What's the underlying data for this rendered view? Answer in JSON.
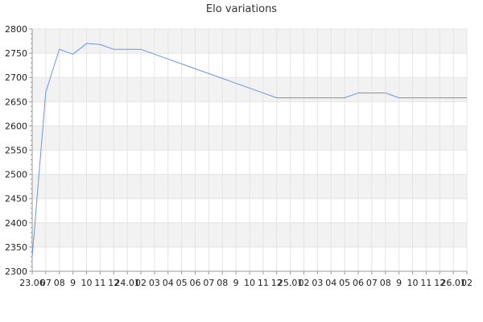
{
  "chart_data": {
    "type": "line",
    "title": "Elo variations",
    "xlabel": "",
    "ylabel": "",
    "ylim": [
      2300,
      2800
    ],
    "yticks": [
      2300,
      2350,
      2400,
      2450,
      2500,
      2550,
      2600,
      2650,
      2700,
      2750,
      2800
    ],
    "grid": true,
    "legend": "none",
    "colors": {
      "line": "#6a95e0",
      "band": "#f2f2f2",
      "grid": "#e4e4e4",
      "axis": "#999999"
    },
    "categories": [
      "23.06",
      "07",
      "08",
      "9",
      "10",
      "11",
      "12",
      "24.01",
      "02",
      "03",
      "04",
      "05",
      "06",
      "07",
      "08",
      "9",
      "10",
      "11",
      "12",
      "25.01",
      "02",
      "03",
      "04",
      "05",
      "06",
      "07",
      "08",
      "9",
      "10",
      "11",
      "12",
      "26.01",
      "02"
    ],
    "series": [
      {
        "name": "",
        "values": [
          2330,
          2670,
          2758,
          2748,
          2770,
          2768,
          2758,
          2758,
          2758,
          2748,
          2738,
          2728,
          2718,
          2708,
          2698,
          2688,
          2678,
          2668,
          2658,
          2658,
          2658,
          2658,
          2658,
          2658,
          2668,
          2668,
          2668,
          2658,
          2658,
          2658,
          2658,
          2658,
          2658
        ]
      }
    ]
  }
}
